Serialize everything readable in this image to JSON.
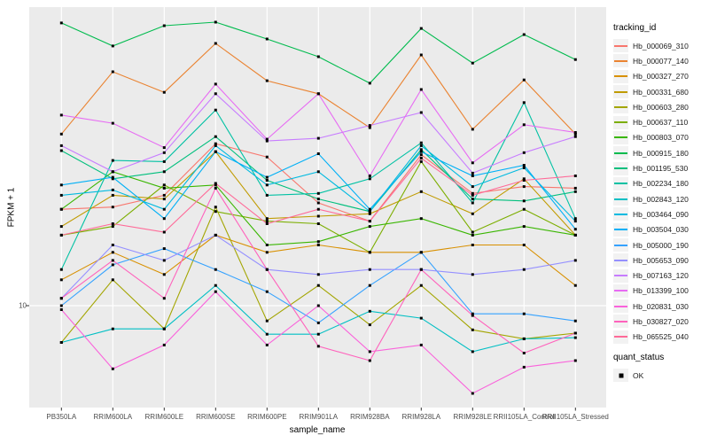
{
  "figure": {
    "x_axis_title": "sample_name",
    "y_axis_title": "FPKM + 1",
    "y_tick_label": "10",
    "legend": {
      "tracking_title": "tracking_id",
      "quant_title": "quant_status",
      "quant_item_label": "OK"
    },
    "colors": {
      "panel_background": "#EBEBEB",
      "gridline": "#FFFFFF",
      "tick_mark": "#333333",
      "tick_text": "#4D4D4D",
      "point": "#000000"
    }
  },
  "chart_data": {
    "type": "line",
    "title": "",
    "xlabel": "sample_name",
    "ylabel": "FPKM + 1",
    "y_scale": "log10",
    "y_tick_values": [
      10
    ],
    "grid": "major-on-white-over-grey-panel",
    "legend_position": "right",
    "point_marker": "small black square (quant_status OK)",
    "categories": [
      "PB350LA",
      "RRIM600LA",
      "RRIM600LE",
      "RRIM600SE",
      "RRIM600PE",
      "RRIM901LA",
      "RRIM928BA",
      "RRIM928LA",
      "RRIM928LE",
      "RRII105LA_Control",
      "RRII105LA_Stressed"
    ],
    "series": [
      {
        "name": "Hb_000069_310",
        "color": "#F8766D",
        "values": [
          35,
          36,
          42,
          82,
          69,
          38,
          30,
          71,
          43,
          47,
          46
        ]
      },
      {
        "name": "Hb_000077_140",
        "color": "#EA8331",
        "values": [
          93,
          209,
          160,
          302,
          186,
          157,
          101,
          260,
          99,
          188,
          93
        ]
      },
      {
        "name": "Hb_000327_270",
        "color": "#D89000",
        "values": [
          14,
          20,
          15,
          25,
          20,
          22,
          20,
          20,
          22,
          22,
          13
        ]
      },
      {
        "name": "Hb_000331_680",
        "color": "#C09B00",
        "values": [
          28,
          42,
          40,
          74,
          31,
          32,
          33,
          44,
          33,
          52,
          25
        ]
      },
      {
        "name": "Hb_000603_280",
        "color": "#A3A500",
        "values": [
          6.2,
          14,
          7.4,
          36,
          8.2,
          13,
          7.8,
          13,
          7.3,
          6.5,
          7.0
        ]
      },
      {
        "name": "Hb_000637_110",
        "color": "#7CAE00",
        "values": [
          25,
          28,
          48,
          34,
          30,
          29,
          20,
          65,
          26,
          35,
          25
        ]
      },
      {
        "name": "Hb_000803_070",
        "color": "#39B600",
        "values": [
          35,
          57,
          46,
          48,
          22,
          23,
          28,
          31,
          25,
          28,
          25
        ]
      },
      {
        "name": "Hb_000915_180",
        "color": "#00BB4E",
        "values": [
          394,
          292,
          380,
          398,
          320,
          254,
          180,
          367,
          234,
          339,
          245
        ]
      },
      {
        "name": "Hb_001195_530",
        "color": "#00BF7D",
        "values": [
          75,
          52,
          57,
          90,
          51,
          40,
          34,
          76,
          40,
          39,
          44
        ]
      },
      {
        "name": "Hb_002234_180",
        "color": "#00C1A3",
        "values": [
          16,
          66,
          65,
          127,
          42,
          43,
          52,
          83,
          38,
          140,
          31
        ]
      },
      {
        "name": "Hb_002843_120",
        "color": "#00BFC4",
        "values": [
          6.2,
          7.4,
          7.4,
          13,
          6.9,
          6.9,
          9.3,
          8.5,
          5.5,
          6.5,
          6.6
        ]
      },
      {
        "name": "Hb_003464_090",
        "color": "#00BAE0",
        "values": [
          42,
          45,
          35,
          80,
          48,
          57,
          34,
          80,
          47,
          60,
          30
        ]
      },
      {
        "name": "Hb_003504_030",
        "color": "#00B0F6",
        "values": [
          48,
          53,
          31,
          74,
          53,
          72,
          35,
          74,
          54,
          62,
          27
        ]
      },
      {
        "name": "Hb_005000_190",
        "color": "#35A2FF",
        "values": [
          10,
          17,
          21,
          16,
          12,
          8.0,
          13,
          20,
          9.0,
          9.0,
          8.2
        ]
      },
      {
        "name": "Hb_005653_090",
        "color": "#9590FF",
        "values": [
          11,
          22,
          18,
          25,
          16,
          15,
          16,
          16,
          15,
          16,
          18
        ]
      },
      {
        "name": "Hb_007163_120",
        "color": "#C77CFF",
        "values": [
          80,
          57,
          73,
          157,
          85,
          88,
          104,
          123,
          56,
          73,
          90
        ]
      },
      {
        "name": "Hb_013399_100",
        "color": "#E76BF3",
        "values": [
          119,
          107,
          78,
          178,
          87,
          157,
          54,
          166,
          64,
          105,
          95
        ]
      },
      {
        "name": "Hb_020831_030",
        "color": "#FA62DB",
        "values": [
          9.5,
          4.4,
          6.0,
          12,
          6.0,
          10,
          5.5,
          6.0,
          3.2,
          4.5,
          4.9
        ]
      },
      {
        "name": "Hb_030827_020",
        "color": "#FF62BC",
        "values": [
          11,
          18,
          11,
          46,
          16,
          5.9,
          4.9,
          16,
          8.8,
          5.4,
          7.0
        ]
      },
      {
        "name": "Hb_065525_040",
        "color": "#FF6A98",
        "values": [
          25,
          29,
          26,
          49,
          29,
          35,
          30,
          68,
          42,
          51,
          54
        ]
      }
    ],
    "quant_status": {
      "title": "quant_status",
      "items": [
        "OK"
      ]
    }
  }
}
